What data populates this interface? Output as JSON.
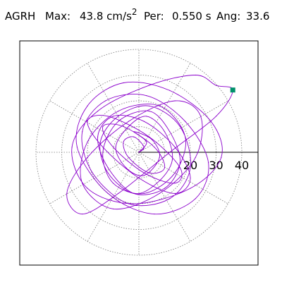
{
  "header": {
    "station": "AGRH",
    "max_label": "Max:",
    "max_value": "43.8 cm/s",
    "max_exp": "2",
    "per_label": "Per:",
    "per_value": "0.550 s",
    "ang_label": "Ang:",
    "ang_value": "33.6"
  },
  "chart_data": {
    "type": "line",
    "plot": "polar particle-motion orbit",
    "title": "",
    "xlabel": "",
    "ylabel": "",
    "radial_ticks": [
      "20",
      "30",
      "40"
    ],
    "radial_tick_values": [
      20,
      30,
      40
    ],
    "rings": [
      10,
      20,
      30,
      40
    ],
    "spokes_deg": [
      30,
      60,
      90,
      120,
      150,
      180,
      210,
      240,
      270,
      300,
      330
    ],
    "xlim": [
      -46,
      46
    ],
    "ylim": [
      -46,
      46
    ],
    "grid": true,
    "line_color": "#8B00CC",
    "marker_color": "#00906A",
    "max_point": {
      "x": 36.5,
      "y": 24.2
    },
    "series": [
      {
        "x": [
          0,
          3,
          -2,
          5,
          8,
          2,
          -5,
          -9,
          -4,
          3,
          10,
          13,
          7,
          -2,
          -12,
          -15,
          -8,
          4,
          16,
          20,
          12,
          -4,
          -18,
          -22,
          -13,
          3,
          18,
          27,
          22,
          6,
          -12,
          -24,
          -20,
          -6,
          12,
          28,
          32,
          20,
          -2,
          -20,
          -26,
          -16,
          4,
          22,
          30,
          36.5,
          30,
          12,
          -8,
          -22,
          -28,
          -20,
          -4,
          14,
          24,
          22,
          8,
          -10,
          -22,
          -20,
          -8,
          8,
          18,
          14,
          2,
          -10,
          -14,
          -8,
          4,
          12,
          16,
          10,
          -2,
          -12,
          -16,
          -10,
          2,
          14,
          20,
          14,
          0,
          -14,
          -20,
          -12,
          4,
          16,
          14,
          2,
          -10,
          -14,
          -6,
          6,
          10,
          4,
          -4,
          -6,
          -2,
          2,
          0
        ],
        "y": [
          0,
          4,
          8,
          5,
          -2,
          -9,
          -6,
          2,
          10,
          14,
          8,
          -3,
          -12,
          -16,
          -8,
          4,
          14,
          18,
          10,
          -6,
          -18,
          -20,
          -8,
          8,
          20,
          22,
          12,
          -4,
          -18,
          -24,
          -16,
          2,
          18,
          27,
          24,
          12,
          -2,
          -14,
          -20,
          -14,
          2,
          16,
          26,
          30,
          26,
          24.2,
          14,
          0,
          -16,
          -24,
          -16,
          -2,
          12,
          20,
          14,
          -2,
          -16,
          -22,
          -12,
          4,
          16,
          18,
          6,
          -8,
          -16,
          -12,
          0,
          12,
          16,
          8,
          -4,
          -14,
          -16,
          -6,
          6,
          14,
          12,
          2,
          -10,
          -16,
          -10,
          2,
          12,
          14,
          6,
          -6,
          -12,
          -8,
          2,
          10,
          10,
          2,
          -6,
          -8,
          -2,
          4,
          6,
          2,
          0
        ]
      }
    ]
  }
}
